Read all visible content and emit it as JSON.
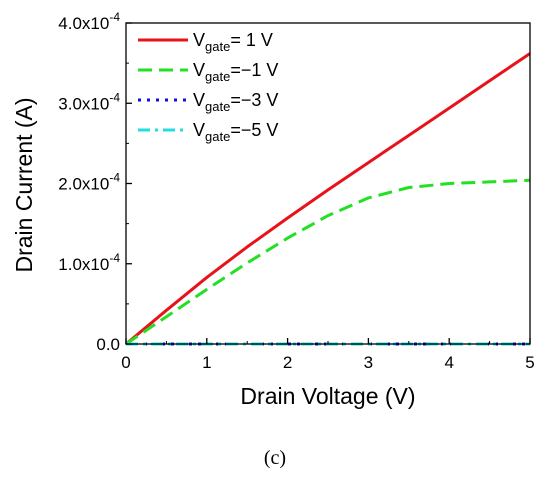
{
  "chart_data": {
    "type": "line",
    "xlabel": "Drain Voltage (V)",
    "ylabel": "Drain Current (A)",
    "xlim": [
      0,
      5
    ],
    "ylim": [
      0,
      0.0004
    ],
    "x_ticks": [
      "0",
      "1",
      "2",
      "3",
      "4",
      "5"
    ],
    "y_ticks": [
      {
        "mantissa": "0.0",
        "exp": ""
      },
      {
        "mantissa": "1.0x10",
        "exp": "-4"
      },
      {
        "mantissa": "2.0x10",
        "exp": "-4"
      },
      {
        "mantissa": "3.0x10",
        "exp": "-4"
      },
      {
        "mantissa": "4.0x10",
        "exp": "-4"
      }
    ],
    "grid": false,
    "legend_position": "top-left",
    "series": [
      {
        "name": "Vgate= 1 V",
        "label_main": "V",
        "label_sub": "gate",
        "label_rest": "= 1 V",
        "color": "#e8131a",
        "style": "solid",
        "x": [
          0,
          0.5,
          1,
          1.5,
          2,
          2.5,
          3,
          3.5,
          4,
          4.5,
          5
        ],
        "y": [
          0,
          4.2e-05,
          8.3e-05,
          0.000121,
          0.000157,
          0.000192,
          0.000226,
          0.00026,
          0.000294,
          0.000328,
          0.000362
        ]
      },
      {
        "name": "Vgate=−1 V",
        "label_main": "V",
        "label_sub": "gate",
        "label_rest": "=−1 V",
        "color": "#22e022",
        "style": "dash",
        "x": [
          0,
          0.5,
          1,
          1.5,
          2,
          2.5,
          3,
          3.5,
          4,
          4.5,
          5
        ],
        "y": [
          0,
          3.4e-05,
          6.8e-05,
          0.000101,
          0.000132,
          0.00016,
          0.000182,
          0.000195,
          0.0002,
          0.000202,
          0.000204
        ]
      },
      {
        "name": "Vgate=−3 V",
        "label_main": "V",
        "label_sub": "gate",
        "label_rest": "=−3 V",
        "color": "#1010d8",
        "style": "dot",
        "x": [
          0,
          1,
          2,
          3,
          4,
          5
        ],
        "y": [
          0,
          0,
          0,
          0,
          0,
          0
        ]
      },
      {
        "name": "Vgate=−5 V",
        "label_main": "V",
        "label_sub": "gate",
        "label_rest": "=−5 V",
        "color": "#22dede",
        "style": "dashdot",
        "x": [
          0,
          1,
          2,
          3,
          4,
          5
        ],
        "y": [
          0,
          0,
          0,
          0,
          0,
          0
        ]
      }
    ]
  },
  "caption": "(c)"
}
